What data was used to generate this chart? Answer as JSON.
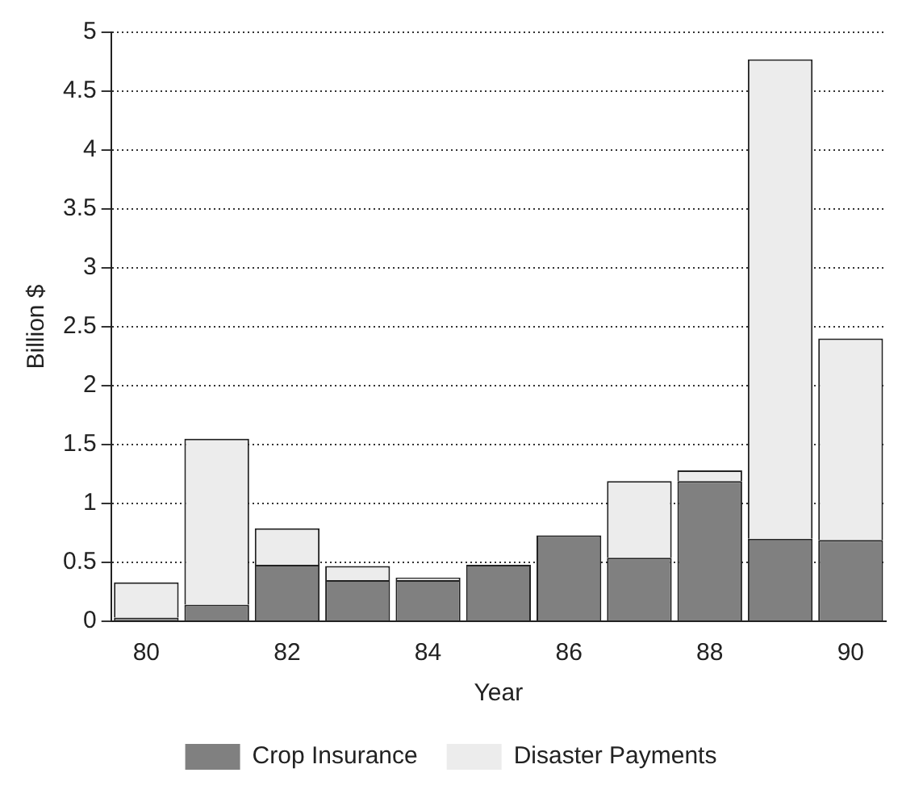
{
  "chart_data": {
    "type": "bar",
    "stacked": true,
    "xlabel": "Year",
    "ylabel": "Billion $",
    "categories": [
      "80",
      null,
      "82",
      null,
      "84",
      null,
      "86",
      null,
      "88",
      null,
      "90"
    ],
    "series": [
      {
        "name": "Crop Insurance",
        "color": "#808080",
        "values": [
          0.03,
          0.14,
          0.48,
          0.35,
          0.35,
          0.48,
          0.73,
          0.54,
          1.19,
          0.7,
          0.69
        ]
      },
      {
        "name": "Disaster Payments",
        "color": "#ececec",
        "values": [
          0.3,
          1.41,
          0.31,
          0.12,
          0.02,
          0,
          0,
          0.65,
          0.09,
          4.07,
          1.71
        ]
      }
    ],
    "ylim": [
      0,
      5
    ],
    "yticks": [
      0,
      0.5,
      1,
      1.5,
      2,
      2.5,
      3,
      3.5,
      4,
      4.5,
      5
    ],
    "grid": "y",
    "legend": "bottom"
  }
}
